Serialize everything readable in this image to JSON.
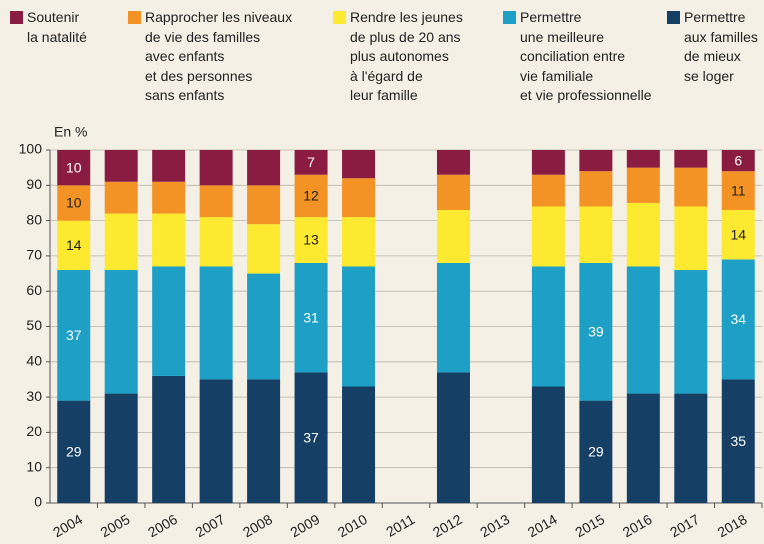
{
  "chart_data": {
    "type": "stacked_bar",
    "y_label": "En %",
    "categories": [
      "2004",
      "2005",
      "2006",
      "2007",
      "2008",
      "2009",
      "2010",
      "2011",
      "2012",
      "2013",
      "2014",
      "2015",
      "2016",
      "2017",
      "2018"
    ],
    "ylim": [
      0,
      100
    ],
    "yticks": [
      0,
      10,
      20,
      30,
      40,
      50,
      60,
      70,
      80,
      90,
      100
    ],
    "grid": true,
    "series": [
      {
        "name": "Permettre\naux familles\nde mieux\nse loger",
        "color": "#163f66",
        "values": [
          29,
          31,
          36,
          35,
          35,
          37,
          33,
          null,
          37,
          null,
          33,
          29,
          31,
          31,
          35
        ],
        "value_labels": [
          "29",
          null,
          null,
          null,
          null,
          "37",
          null,
          null,
          null,
          null,
          null,
          "29",
          null,
          null,
          "35"
        ]
      },
      {
        "name": "Permettre\nune meilleure\nconciliation entre\nvie familiale\net vie professionnelle",
        "color": "#1d9fc6",
        "values": [
          37,
          35,
          31,
          32,
          30,
          31,
          34,
          null,
          31,
          null,
          34,
          39,
          36,
          35,
          34
        ],
        "value_labels": [
          "37",
          null,
          null,
          null,
          null,
          "31",
          null,
          null,
          null,
          null,
          null,
          "39",
          null,
          null,
          "34"
        ]
      },
      {
        "name": "Rendre les jeunes\nde plus de 20 ans\nplus autonomes\nà l'égard de\nleur famille",
        "color": "#fde92f",
        "values": [
          14,
          16,
          15,
          14,
          14,
          13,
          14,
          null,
          15,
          null,
          17,
          16,
          18,
          18,
          14
        ],
        "value_labels": [
          "14",
          null,
          null,
          null,
          null,
          "13",
          null,
          null,
          null,
          null,
          null,
          null,
          null,
          null,
          "14"
        ]
      },
      {
        "name": "Rapprocher les niveaux\nde vie des familles\navec enfants\net des personnes\nsans enfants",
        "color": "#f39325",
        "values": [
          10,
          9,
          9,
          9,
          11,
          12,
          11,
          null,
          10,
          null,
          9,
          10,
          10,
          11,
          11
        ],
        "value_labels": [
          "10",
          null,
          null,
          null,
          null,
          "12",
          null,
          null,
          null,
          null,
          null,
          null,
          null,
          null,
          "11"
        ]
      },
      {
        "name": "Soutenir\nla natalité",
        "color": "#8a1c42",
        "values": [
          10,
          9,
          9,
          10,
          10,
          7,
          8,
          null,
          7,
          null,
          7,
          6,
          5,
          5,
          6
        ],
        "value_labels": [
          "10",
          null,
          null,
          null,
          null,
          "7",
          null,
          null,
          null,
          null,
          null,
          null,
          null,
          null,
          "6"
        ]
      }
    ]
  }
}
